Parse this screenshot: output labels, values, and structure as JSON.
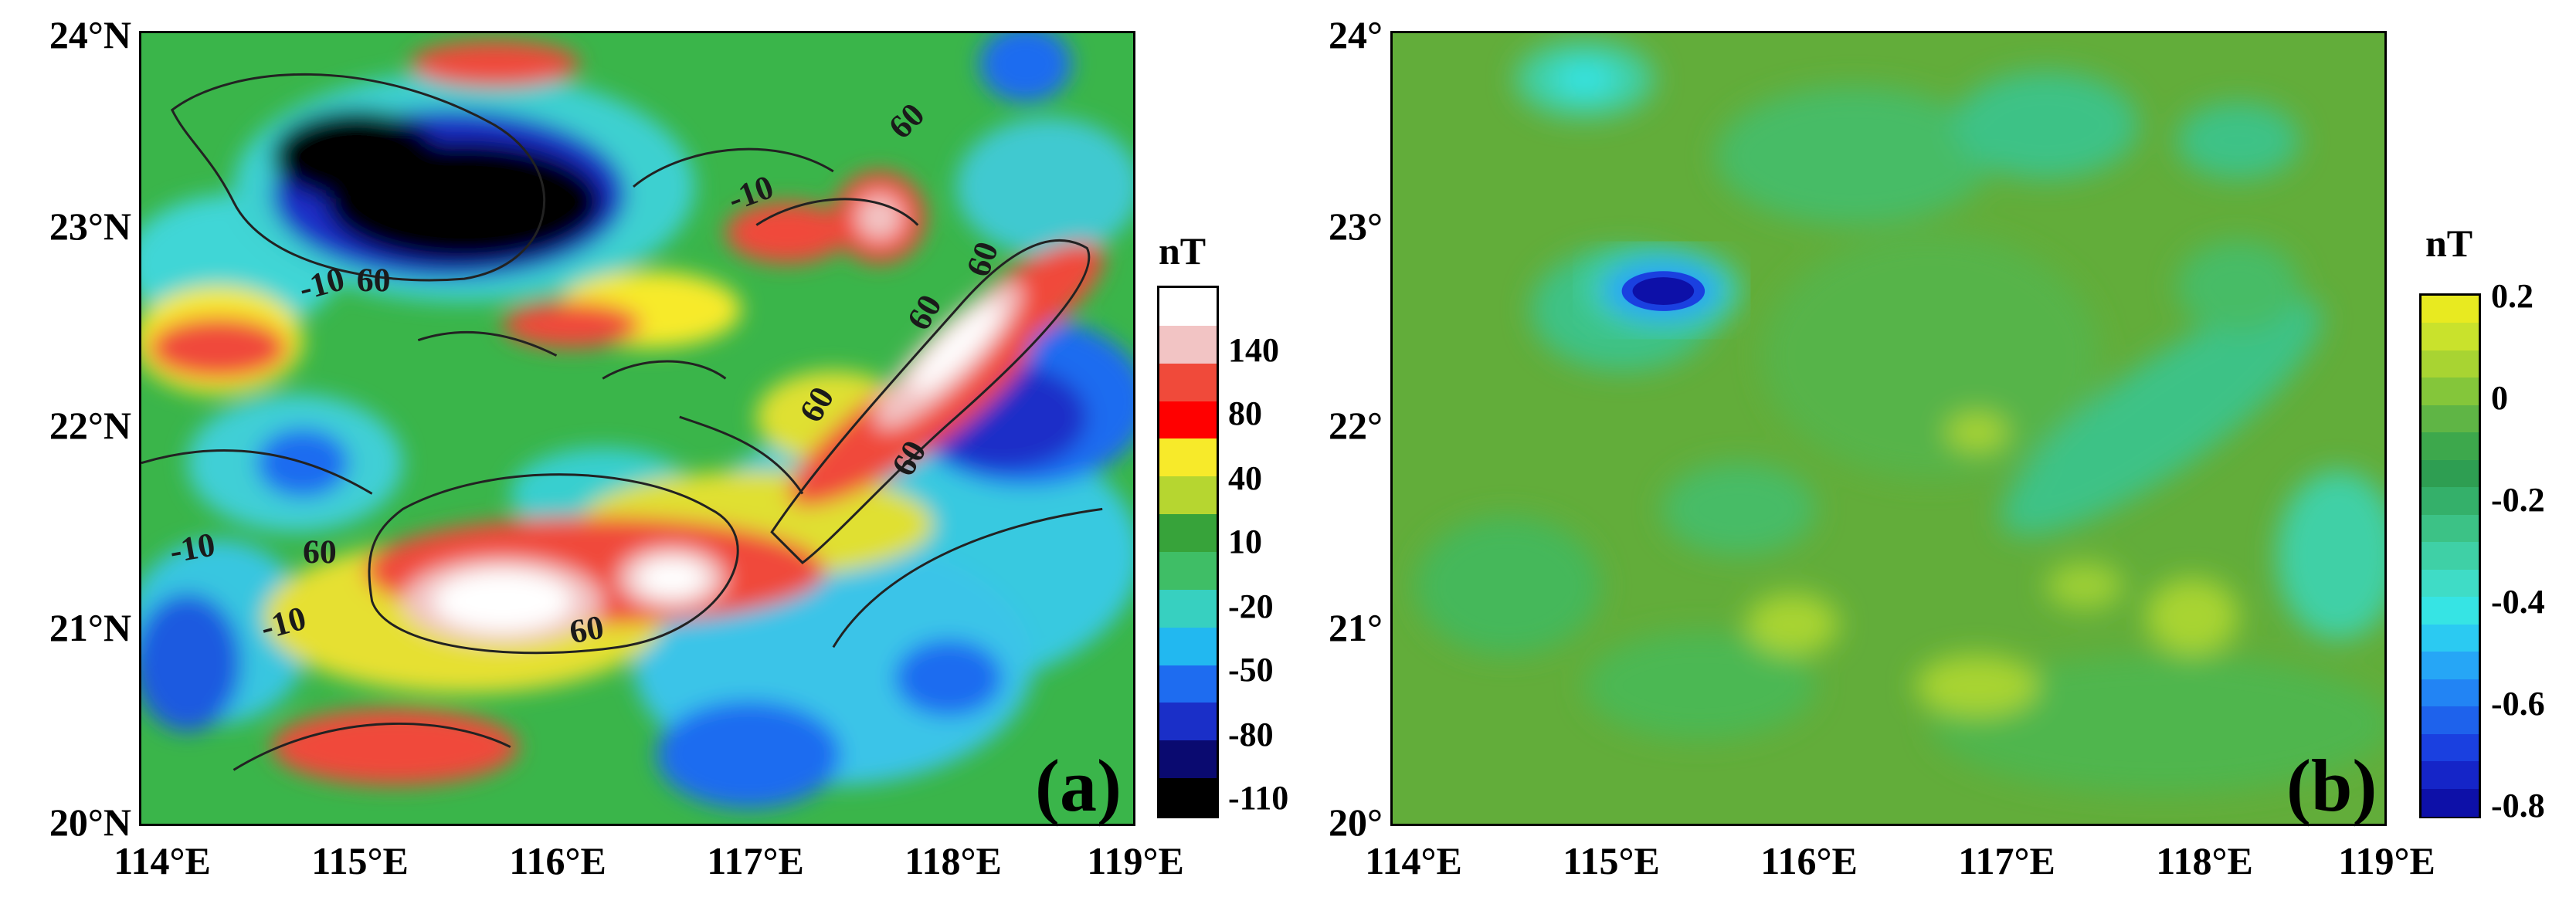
{
  "panel_a": {
    "label": "(a)",
    "unit": "nT",
    "y_ticks": [
      "24°N",
      "23°N",
      "22°N",
      "21°N",
      "20°N"
    ],
    "x_ticks": [
      "114°E",
      "115°E",
      "116°E",
      "117°E",
      "118°E",
      "119°E"
    ],
    "colorbar_labels": [
      "140",
      "80",
      "40",
      "10",
      "-20",
      "-50",
      "-80",
      "-110"
    ],
    "colorbar_colors": [
      "#ffffff",
      "#f2c4c4",
      "#f04a3a",
      "#ff0000",
      "#f7ea2a",
      "#b6d630",
      "#37a33a",
      "#3fbe66",
      "#37d0c0",
      "#22b8f0",
      "#1e6cf0",
      "#1a2fc8",
      "#0a0a70",
      "#000000"
    ],
    "contour_labels": [
      "-10",
      "-10",
      "60",
      "-10",
      "60",
      "60",
      "60",
      "60",
      "60",
      "-10",
      "60",
      "60"
    ]
  },
  "panel_b": {
    "label": "(b)",
    "unit": "nT",
    "y_ticks": [
      "24°",
      "23°",
      "22°",
      "21°",
      "20°"
    ],
    "x_ticks": [
      "114°E",
      "115°E",
      "116°E",
      "117°E",
      "118°E",
      "119°E"
    ],
    "colorbar_labels": [
      "0.2",
      "0",
      "-0.2",
      "-0.4",
      "-0.6",
      "-0.8"
    ],
    "colorbar_colors": [
      "#e8ea20",
      "#c9e22c",
      "#a8d432",
      "#84c63a",
      "#5fb545",
      "#3da84c",
      "#2e9e52",
      "#34b06a",
      "#3cc286",
      "#3fd0a6",
      "#3fdcc6",
      "#36e4e4",
      "#2bcaf2",
      "#26a6f6",
      "#2284f4",
      "#1e62ec",
      "#1a40e0",
      "#1525c8",
      "#0d10a8"
    ]
  }
}
